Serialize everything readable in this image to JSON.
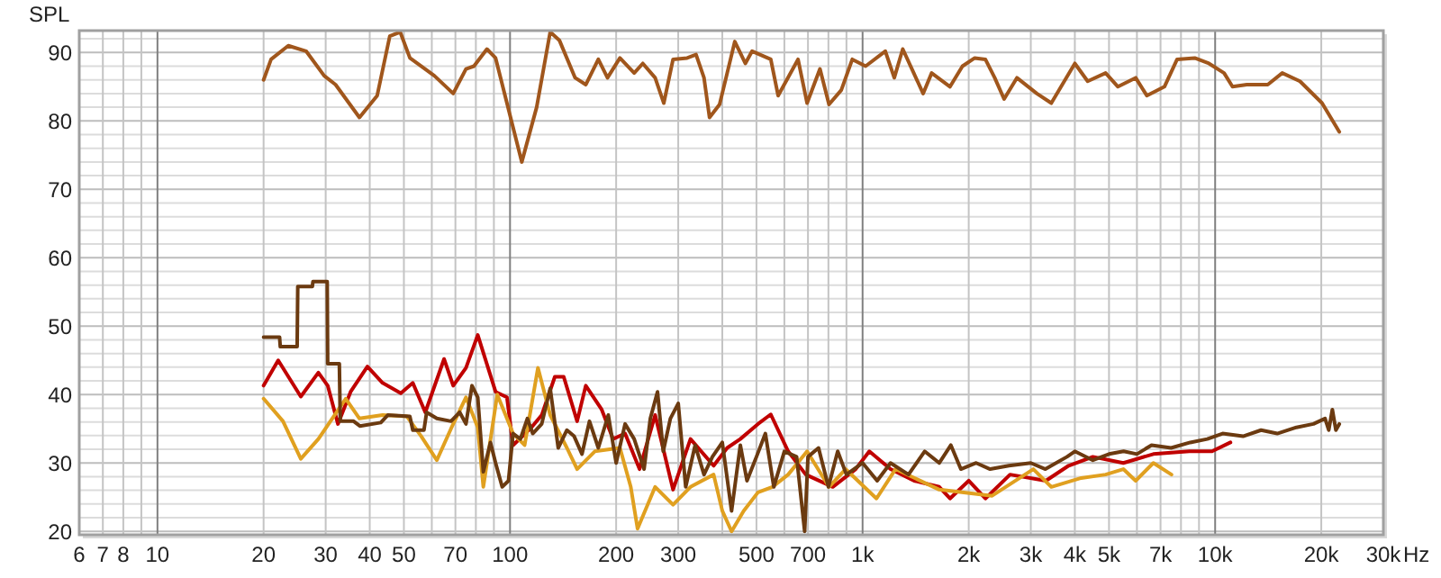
{
  "chart_data": {
    "type": "line",
    "ylabel": "SPL",
    "log": "x",
    "xlabel": "Hz",
    "grid": true,
    "line_style": "solid",
    "xlim": [
      6,
      30000
    ],
    "ylim": [
      19.5,
      93.2
    ],
    "xticks": [
      6,
      7,
      8,
      {
        "value": 9,
        "label": null
      },
      10,
      20,
      30,
      40,
      50,
      {
        "value": 60,
        "label": null
      },
      70,
      {
        "value": 80,
        "label": null
      },
      {
        "value": 90,
        "label": null
      },
      100,
      200,
      300,
      {
        "value": 400,
        "label": null
      },
      500,
      {
        "value": 600,
        "label": null
      },
      700,
      {
        "value": 800,
        "label": null
      },
      {
        "value": 900,
        "label": null
      },
      {
        "value": 1000,
        "label": "1k"
      },
      {
        "value": 2000,
        "label": "2k"
      },
      {
        "value": 3000,
        "label": "3k"
      },
      {
        "value": 4000,
        "label": "4k"
      },
      {
        "value": 5000,
        "label": "5k"
      },
      {
        "value": 6000,
        "label": null
      },
      {
        "value": 7000,
        "label": "7k"
      },
      {
        "value": 8000,
        "label": null
      },
      {
        "value": 9000,
        "label": null
      },
      {
        "value": 10000,
        "label": "10k"
      },
      {
        "value": 20000,
        "label": "20k"
      },
      {
        "value": 30000,
        "label": "30k"
      }
    ],
    "yticks": [
      20,
      {
        "value": 22,
        "label": null
      },
      {
        "value": 24,
        "label": null
      },
      {
        "value": 26,
        "label": null
      },
      {
        "value": 28,
        "label": null
      },
      30,
      {
        "value": 32,
        "label": null
      },
      {
        "value": 34,
        "label": null
      },
      {
        "value": 36,
        "label": null
      },
      {
        "value": 38,
        "label": null
      },
      40,
      {
        "value": 42,
        "label": null
      },
      {
        "value": 44,
        "label": null
      },
      {
        "value": 46,
        "label": null
      },
      {
        "value": 48,
        "label": null
      },
      50,
      {
        "value": 52,
        "label": null
      },
      {
        "value": 54,
        "label": null
      },
      {
        "value": 56,
        "label": null
      },
      {
        "value": 58,
        "label": null
      },
      60,
      {
        "value": 62,
        "label": null
      },
      {
        "value": 64,
        "label": null
      },
      {
        "value": 66,
        "label": null
      },
      {
        "value": 68,
        "label": null
      },
      70,
      {
        "value": 72,
        "label": null
      },
      {
        "value": 74,
        "label": null
      },
      {
        "value": 76,
        "label": null
      },
      {
        "value": 78,
        "label": null
      },
      80,
      {
        "value": 82,
        "label": null
      },
      {
        "value": 84,
        "label": null
      },
      {
        "value": 86,
        "label": null
      },
      {
        "value": 88,
        "label": null
      },
      90,
      {
        "value": 92,
        "label": null
      }
    ],
    "series": [
      {
        "color": "#a0561c",
        "x": [
          20,
          21,
          23.5,
          26.4,
          29.7,
          32,
          37.4,
          42,
          45.6,
          48.8,
          52,
          61,
          69,
          75,
          79,
          86,
          91,
          108,
          119,
          130,
          138,
          153,
          164,
          178,
          189,
          205,
          225,
          238,
          258,
          273,
          290,
          318,
          337,
          355,
          368,
          393,
          413,
          434,
          465,
          486,
          549,
          576,
          656,
          696,
          757,
          803,
          870,
          935,
          1020,
          1160,
          1230,
          1300,
          1485,
          1570,
          1770,
          1920,
          2080,
          2230,
          2370,
          2520,
          2740,
          3120,
          3430,
          4000,
          4350,
          4890,
          5300,
          5950,
          6400,
          7180,
          7800,
          8750,
          9600,
          10600,
          11200,
          12300,
          14100,
          15500,
          17400,
          20100,
          22500
        ],
        "values": [
          86,
          89,
          91,
          90.2,
          86.6,
          85.3,
          80.5,
          83.7,
          92.4,
          93,
          89.2,
          86.6,
          84,
          87.6,
          88,
          90.5,
          89.2,
          74,
          82,
          93,
          91.8,
          86.3,
          85.3,
          89,
          86.3,
          89.2,
          87,
          88.4,
          86.3,
          82.6,
          89,
          89.2,
          89.7,
          86.3,
          80.5,
          82.4,
          87,
          91.6,
          88.4,
          90.2,
          89,
          83.7,
          89,
          82.6,
          87.6,
          82.4,
          84.5,
          89,
          88,
          90.2,
          86.3,
          90.5,
          84,
          87,
          85,
          88,
          89.2,
          89,
          86.3,
          83.2,
          86.3,
          84,
          82.6,
          88.4,
          85.8,
          87,
          85,
          86.3,
          83.7,
          85,
          89,
          89.2,
          88.4,
          87,
          85,
          85.3,
          85.3,
          87,
          85.8,
          82.6,
          78.4
        ]
      },
      {
        "color": "#c00000",
        "x": [
          20,
          22,
          25.5,
          28.6,
          30.4,
          32.5,
          35.3,
          39.4,
          43.5,
          49,
          53,
          57.5,
          65,
          69,
          75,
          81,
          91,
          98,
          102,
          115,
          123,
          134,
          142,
          155,
          164,
          182,
          196,
          212,
          233,
          258,
          290,
          325,
          378,
          413,
          450,
          505,
          549,
          615,
          690,
          823,
          956,
          1045,
          1200,
          1400,
          1650,
          1770,
          2000,
          2230,
          2620,
          3310,
          3840,
          4500,
          5490,
          6680,
          8450,
          9800,
          11050
        ],
        "values": [
          41.3,
          45,
          39.7,
          43.2,
          41.3,
          35.7,
          40.4,
          44.1,
          41.7,
          40.2,
          41.7,
          37.4,
          45.2,
          41.3,
          43.9,
          48.7,
          40.4,
          39.6,
          32.6,
          35.2,
          37,
          42.6,
          42.6,
          36.1,
          41.3,
          37.8,
          33.5,
          34.3,
          29.1,
          37,
          26.1,
          33.5,
          29.6,
          32.2,
          33.5,
          35.7,
          37.1,
          31.7,
          28.3,
          26.5,
          29.1,
          31.7,
          29.1,
          27.4,
          26.5,
          24.8,
          27.4,
          24.8,
          28.3,
          27.4,
          29.6,
          30.9,
          30,
          31.3,
          31.7,
          31.7,
          33
        ]
      },
      {
        "color": "#e0a020",
        "x": [
          20,
          22.7,
          25.5,
          28.6,
          34.2,
          37.4,
          43.5,
          51,
          56,
          62,
          68,
          75,
          81,
          84,
          92,
          102,
          110,
          120,
          130,
          145,
          155,
          174,
          205,
          220,
          230,
          258,
          290,
          325,
          378,
          400,
          425,
          460,
          505,
          555,
          615,
          696,
          803,
          895,
          1095,
          1240,
          1650,
          2330,
          3050,
          3430,
          4170,
          4890,
          5490,
          5950,
          6680,
          7520
        ],
        "values": [
          39.4,
          36.1,
          30.6,
          33.5,
          39.4,
          36.5,
          37,
          36.8,
          33.9,
          30.4,
          35,
          39.6,
          35.2,
          26.5,
          40,
          34.3,
          32.6,
          43.9,
          37,
          32.2,
          29.1,
          31.7,
          32.2,
          26.5,
          20.4,
          26.5,
          23.9,
          26.5,
          28.3,
          23,
          20,
          23,
          25.7,
          26.5,
          28.3,
          31.7,
          26.5,
          29.1,
          24.8,
          29.1,
          26.1,
          25.2,
          29.1,
          26.5,
          27.8,
          28.3,
          29.1,
          27.4,
          30,
          28.3
        ]
      },
      {
        "color": "#6b3a10",
        "x": [
          20,
          22.2,
          22.3,
          24.9,
          25,
          27.5,
          27.6,
          30.3,
          30.4,
          32.8,
          33,
          36,
          37.5,
          43,
          45,
          52,
          53,
          57,
          58,
          62,
          68,
          72,
          75,
          78,
          81,
          84,
          88,
          91,
          95,
          99,
          102,
          107,
          112,
          116,
          123,
          130,
          137,
          145,
          152,
          160,
          168,
          178,
          190,
          200,
          212,
          225,
          240,
          250,
          262,
          272,
          285,
          300,
          315,
          335,
          355,
          375,
          400,
          425,
          450,
          470,
          500,
          530,
          560,
          600,
          650,
          685,
          700,
          750,
          800,
          850,
          900,
          1000,
          1100,
          1200,
          1350,
          1500,
          1650,
          1780,
          1900,
          2100,
          2300,
          2600,
          3000,
          3300,
          3800,
          4000,
          4500,
          5000,
          5500,
          6000,
          6600,
          7500,
          8500,
          9500,
          10500,
          12000,
          13500,
          15000,
          17000,
          19000,
          20500,
          21000,
          21500,
          22000,
          22500
        ],
        "values": [
          48.4,
          48.4,
          47,
          47,
          55.8,
          55.8,
          56.5,
          56.5,
          44.5,
          44.5,
          36.1,
          36.1,
          35.4,
          35.9,
          37,
          36.8,
          34.8,
          34.8,
          37.4,
          36.5,
          36.1,
          37.4,
          35.7,
          41.3,
          39.6,
          28.7,
          33,
          30,
          26.5,
          27.4,
          34.3,
          33.5,
          36.5,
          34.3,
          35.7,
          40.9,
          32.2,
          34.8,
          33.9,
          31.3,
          36.1,
          32.2,
          37,
          30,
          35.7,
          33.5,
          29.1,
          36.5,
          40.4,
          31.7,
          36.5,
          38.7,
          26.5,
          32.6,
          28.3,
          30.9,
          33,
          23,
          32.6,
          27.4,
          30.9,
          34.3,
          26.5,
          31.7,
          30.9,
          20,
          30.9,
          32.2,
          26.5,
          31.7,
          28.3,
          30,
          27.4,
          30,
          28.3,
          31.7,
          30,
          32.6,
          29.1,
          30,
          29.1,
          29.6,
          30,
          29.1,
          30.9,
          31.7,
          30.4,
          31.3,
          31.7,
          31.3,
          32.6,
          32.2,
          33,
          33.5,
          34.3,
          33.9,
          34.8,
          34.3,
          35.2,
          35.7,
          36.5,
          34.8,
          37.8,
          34.8,
          35.7
        ]
      }
    ]
  }
}
